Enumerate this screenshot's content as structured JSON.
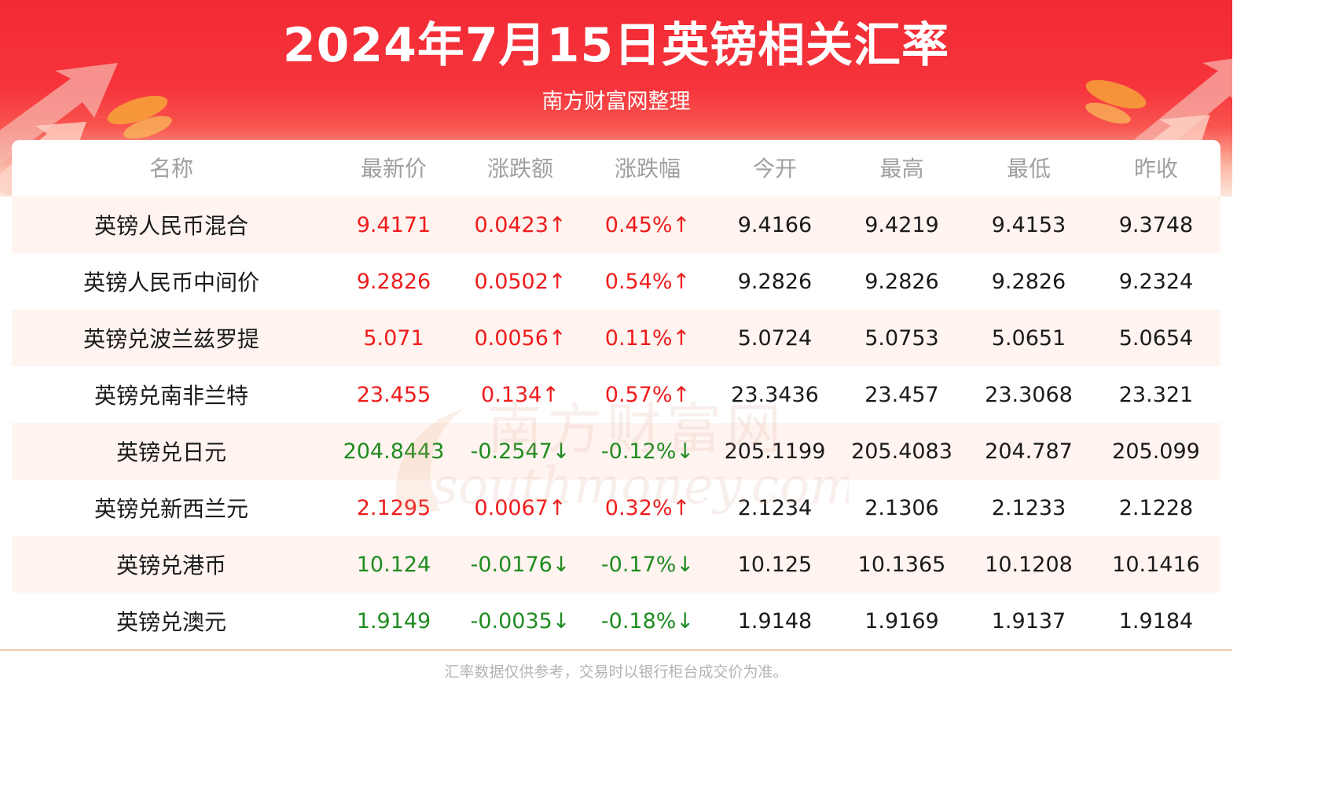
{
  "header": {
    "title": "2024年7月15日英镑相关汇率",
    "subtitle": "南方财富网整理"
  },
  "table": {
    "columns": [
      "名称",
      "最新价",
      "涨跌额",
      "涨跌幅",
      "今开",
      "最高",
      "最低",
      "昨收"
    ],
    "rows": [
      {
        "name": "英镑人民币混合",
        "latest": "9.4171",
        "change": "0.0423↑",
        "pct": "0.45%↑",
        "open": "9.4166",
        "high": "9.4219",
        "low": "9.4153",
        "prev": "9.3748",
        "direction": "up"
      },
      {
        "name": "英镑人民币中间价",
        "latest": "9.2826",
        "change": "0.0502↑",
        "pct": "0.54%↑",
        "open": "9.2826",
        "high": "9.2826",
        "low": "9.2826",
        "prev": "9.2324",
        "direction": "up"
      },
      {
        "name": "英镑兑波兰兹罗提",
        "latest": "5.071",
        "change": "0.0056↑",
        "pct": "0.11%↑",
        "open": "5.0724",
        "high": "5.0753",
        "low": "5.0651",
        "prev": "5.0654",
        "direction": "up"
      },
      {
        "name": "英镑兑南非兰特",
        "latest": "23.455",
        "change": "0.134↑",
        "pct": "0.57%↑",
        "open": "23.3436",
        "high": "23.457",
        "low": "23.3068",
        "prev": "23.321",
        "direction": "up"
      },
      {
        "name": "英镑兑日元",
        "latest": "204.8443",
        "change": "-0.2547↓",
        "pct": "-0.12%↓",
        "open": "205.1199",
        "high": "205.4083",
        "low": "204.787",
        "prev": "205.099",
        "direction": "down"
      },
      {
        "name": "英镑兑新西兰元",
        "latest": "2.1295",
        "change": "0.0067↑",
        "pct": "0.32%↑",
        "open": "2.1234",
        "high": "2.1306",
        "low": "2.1233",
        "prev": "2.1228",
        "direction": "up"
      },
      {
        "name": "英镑兑港币",
        "latest": "10.124",
        "change": "-0.0176↓",
        "pct": "-0.17%↓",
        "open": "10.125",
        "high": "10.1365",
        "low": "10.1208",
        "prev": "10.1416",
        "direction": "down"
      },
      {
        "name": "英镑兑澳元",
        "latest": "1.9149",
        "change": "-0.0035↓",
        "pct": "-0.18%↓",
        "open": "1.9148",
        "high": "1.9169",
        "low": "1.9137",
        "prev": "1.9184",
        "direction": "down"
      }
    ]
  },
  "watermark": {
    "cn": "南方财富网",
    "en": "southmoney.com"
  },
  "footer": {
    "note": "汇率数据仅供参考，交易时以银行柜台成交价为准。"
  },
  "colors": {
    "banner_red": "#f22a34",
    "up": "#f01c1c",
    "down": "#1f8c1f",
    "row_shade": "#fff4f0",
    "header_text": "#a0a0a0"
  }
}
